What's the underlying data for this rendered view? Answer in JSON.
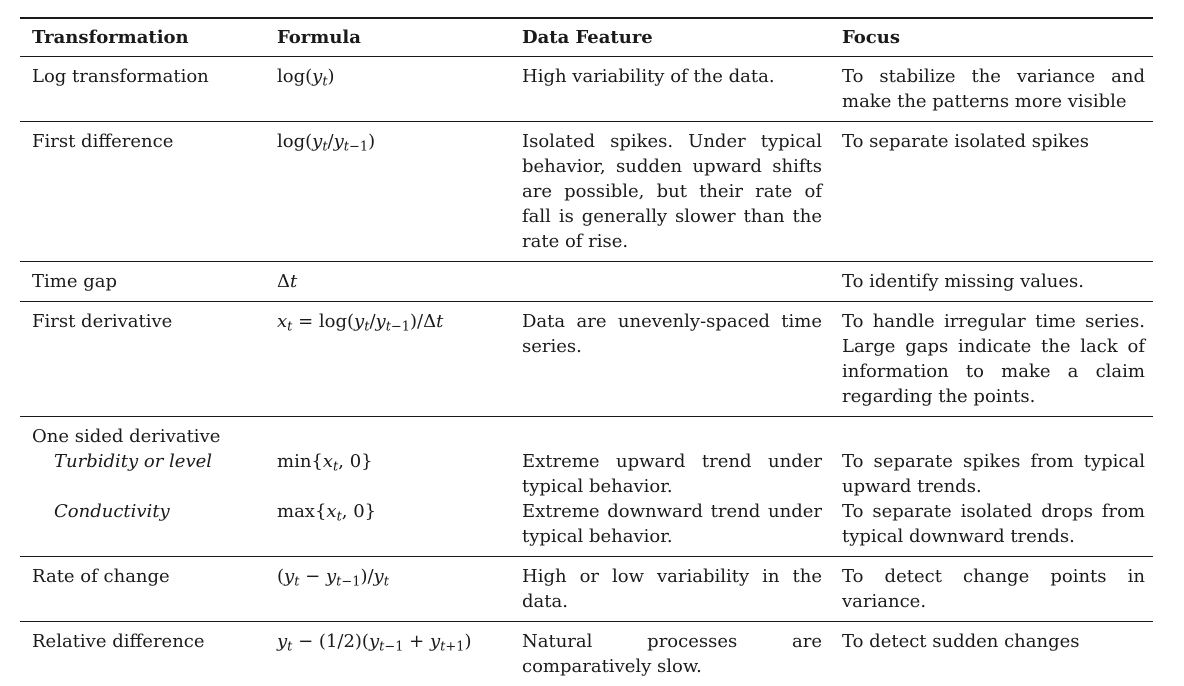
{
  "table": {
    "headers": [
      "Transformation",
      "Formula",
      "Data Feature",
      "Focus"
    ],
    "rows": {
      "log": {
        "transformation": "Log transformation",
        "feature": "High variability of the data.",
        "focus": "To stabilize the variance and make the patterns more visible"
      },
      "first_diff": {
        "transformation": "First difference",
        "feature": "Isolated spikes. Under typical behavior, sudden upward shifts are possible, but their rate of fall is generally slower than the rate of rise.",
        "focus": "To separate isolated spikes"
      },
      "time_gap": {
        "transformation": "Time gap",
        "feature": "",
        "focus": "To identify missing values."
      },
      "first_deriv": {
        "transformation": "First derivative",
        "feature": "Data are unevenly-spaced time series.",
        "focus": "To handle irregular time series. Large gaps indicate the lack of information to make a claim regarding the points."
      },
      "one_sided": {
        "transformation": "One sided derivative",
        "sub1_label": "Turbidity or level",
        "sub1_feature": "Extreme upward trend under typical behavior.",
        "sub1_focus": "To separate spikes from typical upward trends.",
        "sub2_label": "Conductivity",
        "sub2_feature": "Extreme downward trend under typical behavior.",
        "sub2_focus": "To separate isolated drops from typical downward trends."
      },
      "rate": {
        "transformation": "Rate of change",
        "feature": "High or low variability in the data.",
        "focus": "To detect change points in variance."
      },
      "rel_diff": {
        "transformation": "Relative difference",
        "feature": "Natural processes are comparatively slow.",
        "focus": "To detect sudden changes"
      }
    }
  }
}
